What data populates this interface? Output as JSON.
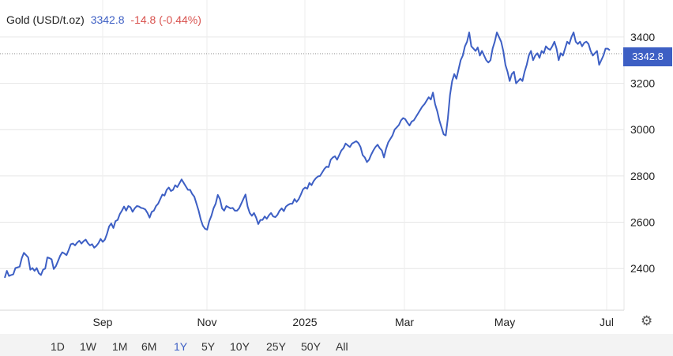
{
  "header": {
    "instrument": "Gold (USD/t.oz)",
    "last": "3342.8",
    "change": "-14.8 (-0.44%)"
  },
  "price_tag": "3342.8",
  "range_buttons": [
    "1D",
    "1W",
    "1M",
    "6M",
    "1Y",
    "5Y",
    "10Y",
    "25Y",
    "50Y",
    "All"
  ],
  "active_range": "1Y",
  "colors": {
    "line": "#3d5fc4",
    "grid": "#e6e6e6",
    "change": "#d9534f",
    "tag": "#3d5fc4"
  },
  "icons": {
    "settings": "gear-icon"
  },
  "chart_data": {
    "type": "line",
    "title": "Gold (USD/t.oz)",
    "xlabel": "",
    "ylabel": "",
    "ylim": [
      2220,
      3560
    ],
    "y_ticks": [
      2400,
      2600,
      2800,
      3000,
      3200,
      3400
    ],
    "x_ticks": [
      "Sep",
      "Nov",
      "2025",
      "Mar",
      "May",
      "Jul"
    ],
    "grid": true,
    "last_value": 3342.8,
    "series": [
      {
        "values": [
          2360,
          2390,
          2368,
          2372,
          2375,
          2402,
          2405,
          2408,
          2445,
          2468,
          2458,
          2448,
          2395,
          2402,
          2390,
          2402,
          2380,
          2372,
          2395,
          2400,
          2448,
          2445,
          2440,
          2398,
          2410,
          2432,
          2455,
          2470,
          2465,
          2458,
          2480,
          2505,
          2508,
          2500,
          2512,
          2520,
          2508,
          2518,
          2525,
          2510,
          2500,
          2505,
          2490,
          2498,
          2510,
          2528,
          2515,
          2525,
          2550,
          2582,
          2595,
          2575,
          2605,
          2610,
          2635,
          2650,
          2668,
          2650,
          2670,
          2665,
          2645,
          2660,
          2670,
          2668,
          2662,
          2660,
          2655,
          2640,
          2620,
          2645,
          2650,
          2670,
          2680,
          2700,
          2720,
          2715,
          2740,
          2750,
          2735,
          2740,
          2760,
          2752,
          2768,
          2785,
          2770,
          2755,
          2740,
          2740,
          2722,
          2710,
          2680,
          2650,
          2612,
          2585,
          2572,
          2568,
          2605,
          2628,
          2660,
          2680,
          2718,
          2700,
          2660,
          2650,
          2670,
          2665,
          2660,
          2662,
          2650,
          2650,
          2660,
          2680,
          2700,
          2720,
          2668,
          2640,
          2628,
          2640,
          2620,
          2592,
          2610,
          2610,
          2625,
          2615,
          2630,
          2640,
          2625,
          2622,
          2632,
          2650,
          2660,
          2648,
          2668,
          2675,
          2680,
          2680,
          2700,
          2688,
          2700,
          2720,
          2742,
          2750,
          2745,
          2770,
          2760,
          2778,
          2790,
          2798,
          2800,
          2815,
          2830,
          2840,
          2838,
          2870,
          2880,
          2885,
          2870,
          2890,
          2910,
          2920,
          2940,
          2932,
          2925,
          2940,
          2945,
          2950,
          2942,
          2925,
          2890,
          2880,
          2860,
          2870,
          2892,
          2910,
          2925,
          2935,
          2920,
          2910,
          2880,
          2918,
          2945,
          2960,
          2975,
          3000,
          3010,
          3020,
          3040,
          3050,
          3045,
          3030,
          3018,
          3035,
          3040,
          3055,
          3070,
          3085,
          3100,
          3110,
          3125,
          3140,
          3130,
          3160,
          3110,
          3080,
          3040,
          3010,
          2980,
          2975,
          3050,
          3150,
          3210,
          3240,
          3220,
          3260,
          3300,
          3320,
          3360,
          3380,
          3420,
          3360,
          3350,
          3340,
          3355,
          3320,
          3340,
          3320,
          3300,
          3290,
          3300,
          3350,
          3380,
          3420,
          3400,
          3380,
          3340,
          3280,
          3250,
          3210,
          3240,
          3250,
          3200,
          3210,
          3220,
          3210,
          3250,
          3280,
          3320,
          3340,
          3300,
          3320,
          3330,
          3310,
          3340,
          3330,
          3360,
          3350,
          3345,
          3360,
          3380,
          3350,
          3300,
          3330,
          3320,
          3350,
          3380,
          3370,
          3400,
          3420,
          3380,
          3370,
          3380,
          3360,
          3375,
          3380,
          3370,
          3340,
          3320,
          3330,
          3340,
          3280,
          3300,
          3320,
          3350,
          3350,
          3342.8
        ]
      }
    ]
  }
}
